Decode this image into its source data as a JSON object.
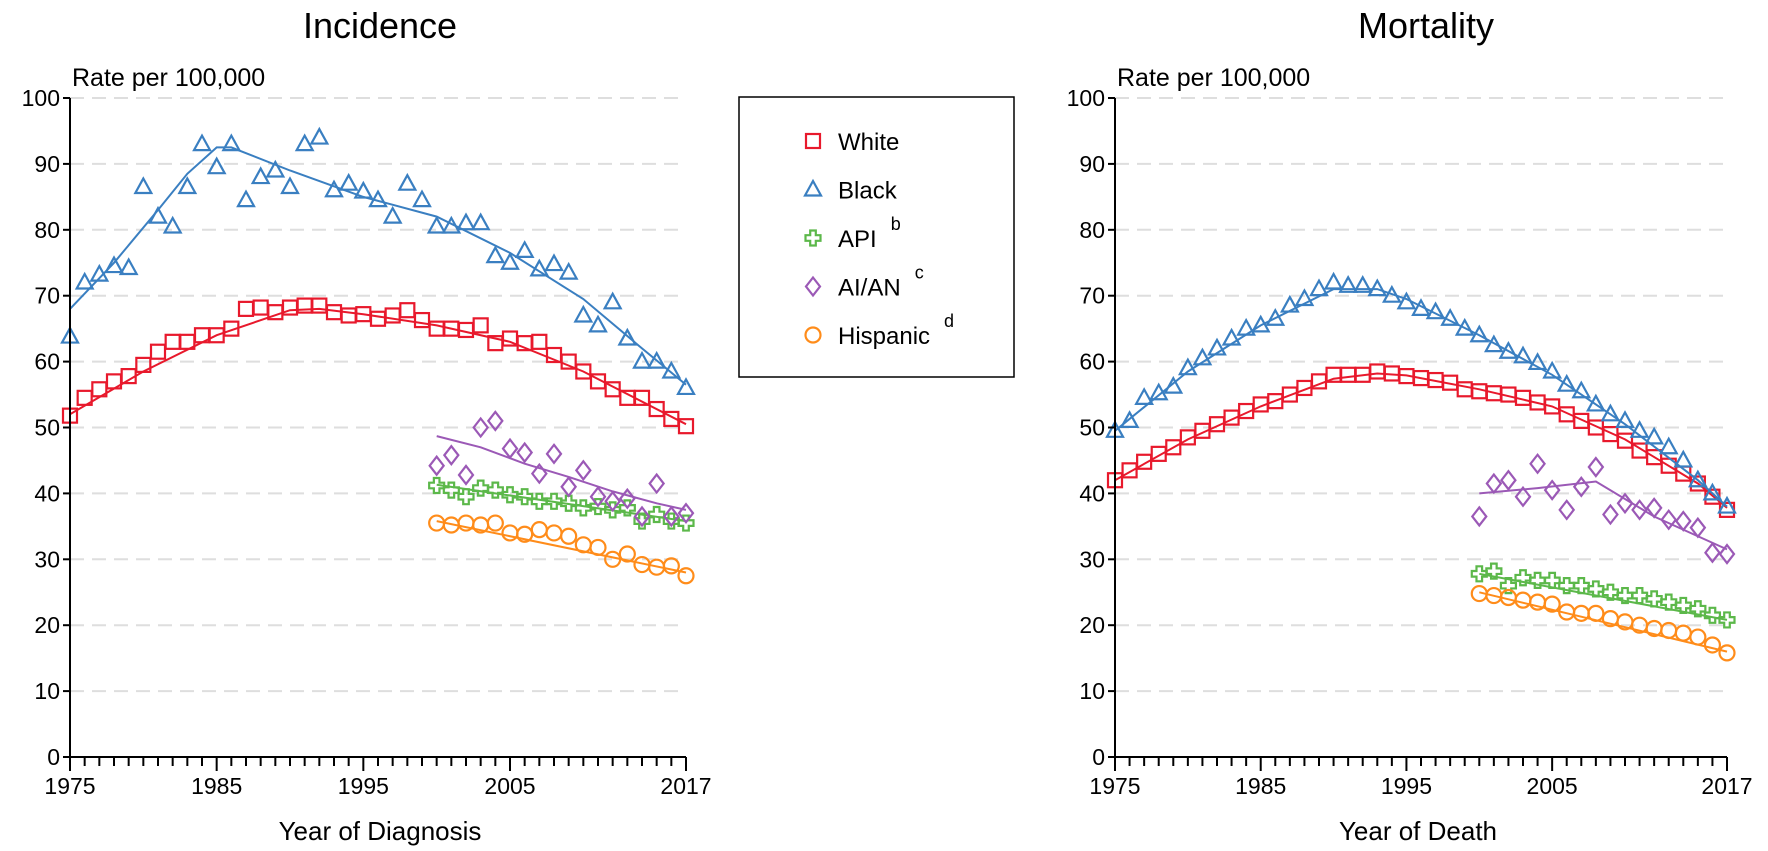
{
  "colors": {
    "White": "#e8192c",
    "Black": "#3a7fc1",
    "API": "#5cb84a",
    "AI/AN": "#9b59b6",
    "Hispanic": "#ff8c1a",
    "grid": "#dedede"
  },
  "legend": {
    "items": [
      {
        "label": "White",
        "sup": "",
        "marker": "square",
        "color": "#e8192c"
      },
      {
        "label": "Black",
        "sup": "",
        "marker": "triangle",
        "color": "#3a7fc1"
      },
      {
        "label": "API",
        "sup": "b",
        "marker": "plus",
        "color": "#5cb84a"
      },
      {
        "label": "AI/AN",
        "sup": "c",
        "marker": "diamond",
        "color": "#9b59b6"
      },
      {
        "label": "Hispanic",
        "sup": "d",
        "marker": "circle",
        "color": "#ff8c1a"
      }
    ]
  },
  "chart_data": [
    {
      "type": "scatter",
      "title": "Incidence",
      "xlabel": "Year of Diagnosis",
      "ylabel": "Rate per 100,000",
      "xlim": [
        1975,
        2017
      ],
      "ylim": [
        0,
        100
      ],
      "xticks": [
        1975,
        1985,
        1995,
        2005,
        2017
      ],
      "yticks": [
        0,
        10,
        20,
        30,
        40,
        50,
        60,
        70,
        80,
        90,
        100
      ],
      "grid": true,
      "series": [
        {
          "name": "White",
          "marker": "square",
          "x": [
            1975,
            1976,
            1977,
            1978,
            1979,
            1980,
            1981,
            1982,
            1983,
            1984,
            1985,
            1986,
            1987,
            1988,
            1989,
            1990,
            1991,
            1992,
            1993,
            1994,
            1995,
            1996,
            1997,
            1998,
            1999,
            2000,
            2001,
            2002,
            2003,
            2004,
            2005,
            2006,
            2007,
            2008,
            2009,
            2010,
            2011,
            2012,
            2013,
            2014,
            2015,
            2016,
            2017
          ],
          "y": [
            51.8,
            54.5,
            55.8,
            57.0,
            57.8,
            59.5,
            61.5,
            63.0,
            63.0,
            64.0,
            64.0,
            65.0,
            68.0,
            68.2,
            67.5,
            68.2,
            68.5,
            68.5,
            67.5,
            67.0,
            67.2,
            66.5,
            67.0,
            67.8,
            66.3,
            65.0,
            65.0,
            64.8,
            65.5,
            62.8,
            63.5,
            62.8,
            63.0,
            61.0,
            60.0,
            58.5,
            57.0,
            55.8,
            54.5,
            54.5,
            52.8,
            51.3,
            50.2
          ],
          "trend": {
            "x": [
              1975,
              1980,
              1985,
              1990,
              1992,
              1995,
              2000,
              2005,
              2010,
              2017
            ],
            "y": [
              52,
              58.5,
              64,
              67.8,
              68,
              67.2,
              65.5,
              63,
              58.5,
              50.5
            ]
          }
        },
        {
          "name": "Black",
          "marker": "triangle",
          "x": [
            1975,
            1976,
            1977,
            1978,
            1979,
            1980,
            1981,
            1982,
            1983,
            1984,
            1985,
            1986,
            1987,
            1988,
            1989,
            1990,
            1991,
            1992,
            1993,
            1994,
            1995,
            1996,
            1997,
            1998,
            1999,
            2000,
            2001,
            2002,
            2003,
            2004,
            2005,
            2006,
            2007,
            2008,
            2009,
            2010,
            2011,
            2012,
            2013,
            2014,
            2015,
            2016,
            2017
          ],
          "y": [
            63.8,
            72.0,
            73.2,
            74.5,
            74.2,
            86.5,
            82.0,
            80.5,
            86.5,
            93.0,
            89.5,
            93.0,
            84.5,
            88.0,
            89.0,
            86.5,
            93.0,
            94.0,
            86.0,
            87.0,
            85.8,
            84.5,
            82.0,
            87.0,
            84.5,
            80.5,
            80.5,
            81.0,
            81.0,
            76.0,
            75.0,
            76.8,
            74.0,
            74.8,
            73.5,
            67.0,
            65.5,
            69.0,
            63.5,
            60.0,
            60.0,
            58.5,
            56.0
          ],
          "trend": {
            "x": [
              1975,
              1978,
              1981,
              1983,
              1985,
              1986,
              1990,
              1995,
              2000,
              2005,
              2010,
              2014,
              2017
            ],
            "y": [
              68,
              75,
              83,
              88.5,
              92.5,
              92.5,
              89,
              85,
              82,
              76.5,
              69.5,
              62,
              56.5
            ]
          }
        },
        {
          "name": "API",
          "marker": "plus",
          "x": [
            2000,
            2001,
            2002,
            2003,
            2004,
            2005,
            2006,
            2007,
            2008,
            2009,
            2010,
            2011,
            2012,
            2013,
            2014,
            2015,
            2016,
            2017
          ],
          "y": [
            41.2,
            40.5,
            39.5,
            40.8,
            40.5,
            39.8,
            39.5,
            38.8,
            38.8,
            38.5,
            37.8,
            38.0,
            37.5,
            37.8,
            35.8,
            36.8,
            35.8,
            35.5
          ],
          "trend": {
            "x": [
              2000,
              2017
            ],
            "y": [
              41.3,
              35.8
            ]
          }
        },
        {
          "name": "AI/AN",
          "marker": "diamond",
          "x": [
            2000,
            2001,
            2002,
            2003,
            2004,
            2005,
            2006,
            2007,
            2008,
            2009,
            2010,
            2011,
            2012,
            2013,
            2014,
            2015,
            2016,
            2017
          ],
          "y": [
            44.2,
            45.8,
            42.8,
            50.0,
            51.0,
            46.8,
            46.2,
            43.0,
            46.0,
            41.0,
            43.5,
            39.5,
            38.8,
            39.2,
            36.5,
            41.5,
            36.5,
            37.0
          ],
          "trend": {
            "x": [
              2000,
              2003,
              2006,
              2009,
              2012,
              2015,
              2017
            ],
            "y": [
              48.7,
              47,
              44.5,
              42.5,
              40.3,
              38.5,
              37.5
            ]
          }
        },
        {
          "name": "Hispanic",
          "marker": "circle",
          "x": [
            2000,
            2001,
            2002,
            2003,
            2004,
            2005,
            2006,
            2007,
            2008,
            2009,
            2010,
            2011,
            2012,
            2013,
            2014,
            2015,
            2016,
            2017
          ],
          "y": [
            35.5,
            35.2,
            35.5,
            35.2,
            35.5,
            34.0,
            33.8,
            34.5,
            34.0,
            33.5,
            32.2,
            31.8,
            30.0,
            30.8,
            29.2,
            28.8,
            29.0,
            27.5
          ],
          "trend": {
            "x": [
              2000,
              2017
            ],
            "y": [
              35.8,
              28
            ]
          }
        }
      ]
    },
    {
      "type": "scatter",
      "title": "Mortality",
      "xlabel": "Year of Death",
      "ylabel": "Rate per 100,000",
      "xlim": [
        1975,
        2017
      ],
      "ylim": [
        0,
        100
      ],
      "xticks": [
        1975,
        1985,
        1995,
        2005,
        2017
      ],
      "yticks": [
        0,
        10,
        20,
        30,
        40,
        50,
        60,
        70,
        80,
        90,
        100
      ],
      "grid": true,
      "series": [
        {
          "name": "White",
          "marker": "square",
          "x": [
            1975,
            1976,
            1977,
            1978,
            1979,
            1980,
            1981,
            1982,
            1983,
            1984,
            1985,
            1986,
            1987,
            1988,
            1989,
            1990,
            1991,
            1992,
            1993,
            1994,
            1995,
            1996,
            1997,
            1998,
            1999,
            2000,
            2001,
            2002,
            2003,
            2004,
            2005,
            2006,
            2007,
            2008,
            2009,
            2010,
            2011,
            2012,
            2013,
            2014,
            2015,
            2016,
            2017
          ],
          "y": [
            42.0,
            43.5,
            44.8,
            46.0,
            47.0,
            48.5,
            49.5,
            50.5,
            51.5,
            52.5,
            53.5,
            54.0,
            55.0,
            56.0,
            57.0,
            58.0,
            58.0,
            58.0,
            58.5,
            58.2,
            57.8,
            57.5,
            57.2,
            56.8,
            55.8,
            55.5,
            55.2,
            55.0,
            54.5,
            53.8,
            53.2,
            52.0,
            51.0,
            50.0,
            49.0,
            48.0,
            46.5,
            45.5,
            44.2,
            43.0,
            41.5,
            39.5,
            37.5
          ],
          "trend": {
            "x": [
              1975,
              1980,
              1985,
              1990,
              1993,
              1995,
              2000,
              2005,
              2010,
              2015,
              2017
            ],
            "y": [
              42,
              48.2,
              53.2,
              57.4,
              58.2,
              57.9,
              55.8,
              53.2,
              48.2,
              41.5,
              37.8
            ]
          }
        },
        {
          "name": "Black",
          "marker": "triangle",
          "x": [
            1975,
            1976,
            1977,
            1978,
            1979,
            1980,
            1981,
            1982,
            1983,
            1984,
            1985,
            1986,
            1987,
            1988,
            1989,
            1990,
            1991,
            1992,
            1993,
            1994,
            1995,
            1996,
            1997,
            1998,
            1999,
            2000,
            2001,
            2002,
            2003,
            2004,
            2005,
            2006,
            2007,
            2008,
            2009,
            2010,
            2011,
            2012,
            2013,
            2014,
            2015,
            2016,
            2017
          ],
          "y": [
            49.5,
            51.0,
            54.5,
            55.2,
            56.2,
            59.0,
            60.5,
            62.0,
            63.5,
            65.0,
            65.5,
            66.5,
            68.5,
            69.5,
            71.0,
            72.0,
            71.5,
            71.5,
            71.0,
            70.0,
            69.0,
            68.0,
            67.5,
            66.5,
            65.0,
            64.0,
            62.5,
            61.5,
            60.8,
            59.8,
            58.5,
            56.5,
            55.5,
            53.5,
            52.0,
            51.0,
            49.5,
            48.5,
            47.0,
            45.0,
            42.0,
            40.0,
            38.0
          ],
          "trend": {
            "x": [
              1975,
              1980,
              1985,
              1990,
              1993,
              1995,
              2000,
              2005,
              2010,
              2015,
              2017
            ],
            "y": [
              49.5,
              58.5,
              65.5,
              71,
              71,
              69.5,
              64,
              58,
              50.5,
              42,
              38
            ]
          }
        },
        {
          "name": "API",
          "marker": "plus",
          "x": [
            2000,
            2001,
            2002,
            2003,
            2004,
            2005,
            2006,
            2007,
            2008,
            2009,
            2010,
            2011,
            2012,
            2013,
            2014,
            2015,
            2016,
            2017
          ],
          "y": [
            27.8,
            28.2,
            26.0,
            27.2,
            26.8,
            26.8,
            26.0,
            26.0,
            25.5,
            25.0,
            24.5,
            24.5,
            24.0,
            23.5,
            23.0,
            22.5,
            21.5,
            20.8
          ],
          "trend": {
            "x": [
              2000,
              2017
            ],
            "y": [
              27.8,
              20.8
            ]
          }
        },
        {
          "name": "AI/AN",
          "marker": "diamond",
          "x": [
            2000,
            2001,
            2002,
            2003,
            2004,
            2005,
            2006,
            2007,
            2008,
            2009,
            2010,
            2011,
            2012,
            2013,
            2014,
            2015,
            2016,
            2017
          ],
          "y": [
            36.5,
            41.5,
            42.0,
            39.5,
            44.5,
            40.5,
            37.5,
            41.0,
            44.0,
            36.8,
            38.5,
            37.5,
            37.8,
            36.0,
            35.8,
            34.8,
            31.0,
            30.8
          ],
          "trend": {
            "x": [
              2000,
              2004,
              2008,
              2012,
              2017
            ],
            "y": [
              40,
              40.8,
              41.8,
              36.5,
              31.5
            ]
          }
        },
        {
          "name": "Hispanic",
          "marker": "circle",
          "x": [
            2000,
            2001,
            2002,
            2003,
            2004,
            2005,
            2006,
            2007,
            2008,
            2009,
            2010,
            2011,
            2012,
            2013,
            2014,
            2015,
            2016,
            2017
          ],
          "y": [
            24.8,
            24.5,
            24.2,
            23.8,
            23.5,
            23.2,
            22.0,
            21.8,
            21.8,
            21.0,
            20.5,
            20.0,
            19.5,
            19.2,
            18.8,
            18.2,
            17.0,
            15.8
          ],
          "trend": {
            "x": [
              2000,
              2017
            ],
            "y": [
              25,
              16
            ]
          }
        }
      ]
    }
  ]
}
